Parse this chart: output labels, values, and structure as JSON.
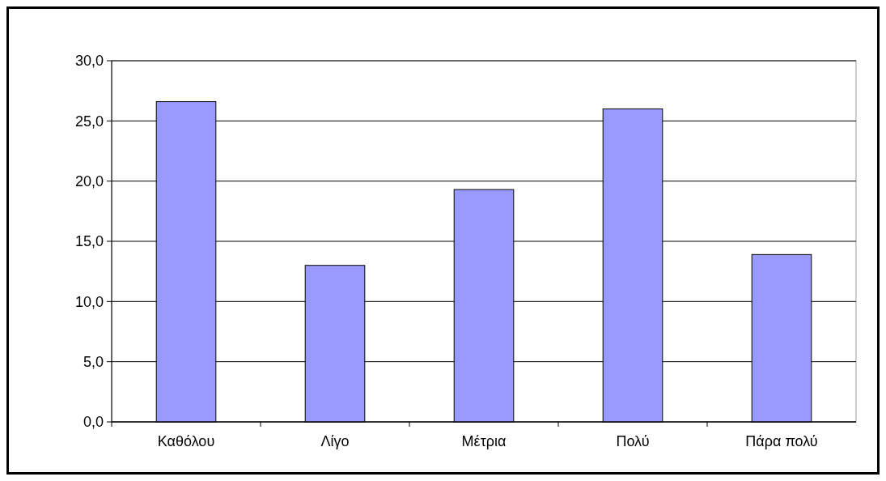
{
  "chart_data": {
    "type": "bar",
    "categories": [
      "Καθόλου",
      "Λίγο",
      "Μέτρια",
      "Πολύ",
      "Πάρα πολύ"
    ],
    "values": [
      26.6,
      13.0,
      19.3,
      26.0,
      13.9
    ],
    "color": "#9999ff",
    "ylim": [
      0,
      30
    ],
    "yticks": [
      {
        "value": 0,
        "label": "0,0"
      },
      {
        "value": 5,
        "label": "5,0"
      },
      {
        "value": 10,
        "label": "10,0"
      },
      {
        "value": 15,
        "label": "15,0"
      },
      {
        "value": 20,
        "label": "20,0"
      },
      {
        "value": 25,
        "label": "25,0"
      },
      {
        "value": 30,
        "label": "30,0"
      }
    ],
    "grid": "y"
  }
}
